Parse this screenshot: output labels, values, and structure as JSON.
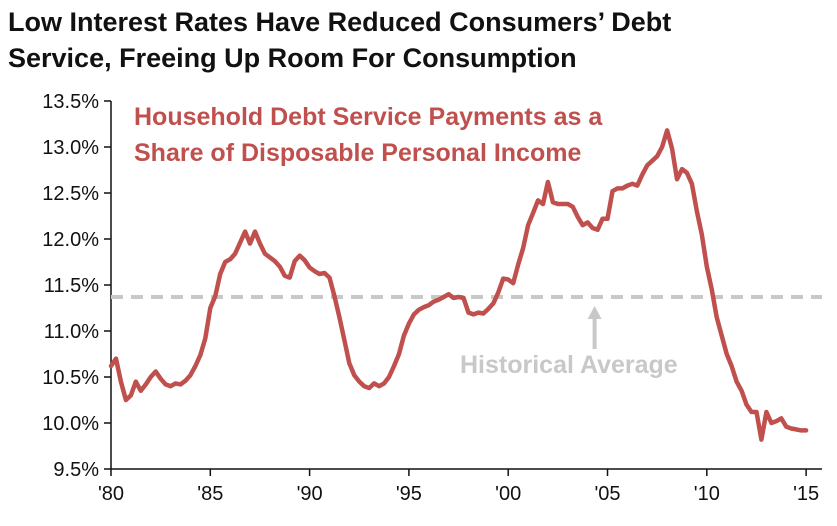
{
  "title_line1": "Low Interest Rates Have Reduced Consumers’ Debt",
  "title_line2": "Service, Freeing Up Room For Consumption",
  "colors": {
    "series": "#c0504d",
    "average": "#c8c8c8",
    "axis": "#111111",
    "text": "#111111"
  },
  "chart_data": {
    "type": "line",
    "title": "Low Interest Rates Have Reduced Consumers’ Debt Service, Freeing Up Room For Consumption",
    "xlabel": "",
    "ylabel": "",
    "ylim": [
      9.5,
      13.5
    ],
    "xlim": [
      1980,
      2015.8
    ],
    "grid": false,
    "y_ticks": [
      "13.5%",
      "13.0%",
      "12.5%",
      "12.0%",
      "11.5%",
      "11.0%",
      "10.5%",
      "10.0%",
      "9.5%"
    ],
    "y_tick_values": [
      13.5,
      13.0,
      12.5,
      12.0,
      11.5,
      11.0,
      10.5,
      10.0,
      9.5
    ],
    "x_ticks": [
      "'80",
      "'85",
      "'90",
      "'95",
      "'00",
      "'05",
      "'10",
      "'15"
    ],
    "x_tick_values": [
      1980,
      1985,
      1990,
      1995,
      2000,
      2005,
      2010,
      2015
    ],
    "series_label_line1": "Household Debt Service Payments as a",
    "series_label_line2": "Share of Disposable Personal Income",
    "average_label": "Historical Average",
    "average_value": 11.37,
    "series": [
      {
        "name": "Household Debt Service Payments as a Share of Disposable Personal Income",
        "x": [
          1980.0,
          1980.25,
          1980.5,
          1980.75,
          1981.0,
          1981.25,
          1981.5,
          1981.75,
          1982.0,
          1982.25,
          1982.5,
          1982.75,
          1983.0,
          1983.25,
          1983.5,
          1983.75,
          1984.0,
          1984.25,
          1984.5,
          1984.75,
          1985.0,
          1985.25,
          1985.5,
          1985.75,
          1986.0,
          1986.25,
          1986.5,
          1986.75,
          1987.0,
          1987.25,
          1987.5,
          1987.75,
          1988.0,
          1988.25,
          1988.5,
          1988.75,
          1989.0,
          1989.25,
          1989.5,
          1989.75,
          1990.0,
          1990.25,
          1990.5,
          1990.75,
          1991.0,
          1991.25,
          1991.5,
          1991.75,
          1992.0,
          1992.25,
          1992.5,
          1992.75,
          1993.0,
          1993.25,
          1993.5,
          1993.75,
          1994.0,
          1994.25,
          1994.5,
          1994.75,
          1995.0,
          1995.25,
          1995.5,
          1995.75,
          1996.0,
          1996.25,
          1996.5,
          1996.75,
          1997.0,
          1997.25,
          1997.5,
          1997.75,
          1998.0,
          1998.25,
          1998.5,
          1998.75,
          1999.0,
          1999.25,
          1999.5,
          1999.75,
          2000.0,
          2000.25,
          2000.5,
          2000.75,
          2001.0,
          2001.25,
          2001.5,
          2001.75,
          2002.0,
          2002.25,
          2002.5,
          2002.75,
          2003.0,
          2003.25,
          2003.5,
          2003.75,
          2004.0,
          2004.25,
          2004.5,
          2004.75,
          2005.0,
          2005.25,
          2005.5,
          2005.75,
          2006.0,
          2006.25,
          2006.5,
          2006.75,
          2007.0,
          2007.25,
          2007.5,
          2007.75,
          2008.0,
          2008.25,
          2008.5,
          2008.75,
          2009.0,
          2009.25,
          2009.5,
          2009.75,
          2010.0,
          2010.25,
          2010.5,
          2010.75,
          2011.0,
          2011.25,
          2011.5,
          2011.75,
          2012.0,
          2012.25,
          2012.5,
          2012.75,
          2013.0,
          2013.25,
          2013.5,
          2013.75,
          2014.0,
          2014.25,
          2014.5,
          2014.75,
          2015.0
        ],
        "values": [
          10.62,
          10.7,
          10.45,
          10.25,
          10.3,
          10.45,
          10.35,
          10.42,
          10.5,
          10.56,
          10.48,
          10.42,
          10.4,
          10.43,
          10.42,
          10.46,
          10.52,
          10.62,
          10.74,
          10.92,
          11.25,
          11.38,
          11.62,
          11.75,
          11.78,
          11.84,
          11.96,
          12.08,
          11.95,
          12.08,
          11.95,
          11.84,
          11.8,
          11.76,
          11.7,
          11.6,
          11.58,
          11.76,
          11.82,
          11.77,
          11.69,
          11.65,
          11.62,
          11.63,
          11.58,
          11.38,
          11.15,
          10.9,
          10.65,
          10.52,
          10.45,
          10.4,
          10.38,
          10.43,
          10.4,
          10.43,
          10.5,
          10.62,
          10.75,
          10.95,
          11.08,
          11.18,
          11.23,
          11.26,
          11.28,
          11.32,
          11.34,
          11.37,
          11.4,
          11.36,
          11.37,
          11.36,
          11.2,
          11.18,
          11.2,
          11.19,
          11.24,
          11.3,
          11.42,
          11.57,
          11.56,
          11.52,
          11.72,
          11.9,
          12.15,
          12.28,
          12.42,
          12.38,
          12.62,
          12.4,
          12.38,
          12.38,
          12.38,
          12.35,
          12.24,
          12.15,
          12.18,
          12.12,
          12.1,
          12.22,
          12.22,
          12.52,
          12.55,
          12.55,
          12.58,
          12.6,
          12.58,
          12.7,
          12.8,
          12.85,
          12.9,
          13.0,
          13.18,
          12.98,
          12.65,
          12.76,
          12.72,
          12.6,
          12.3,
          12.05,
          11.7,
          11.45,
          11.15,
          10.95,
          10.75,
          10.62,
          10.45,
          10.35,
          10.2,
          10.12,
          10.12,
          9.82,
          10.12,
          10.0,
          10.02,
          10.05,
          9.96,
          9.94,
          9.93,
          9.92,
          9.92
        ]
      }
    ]
  }
}
